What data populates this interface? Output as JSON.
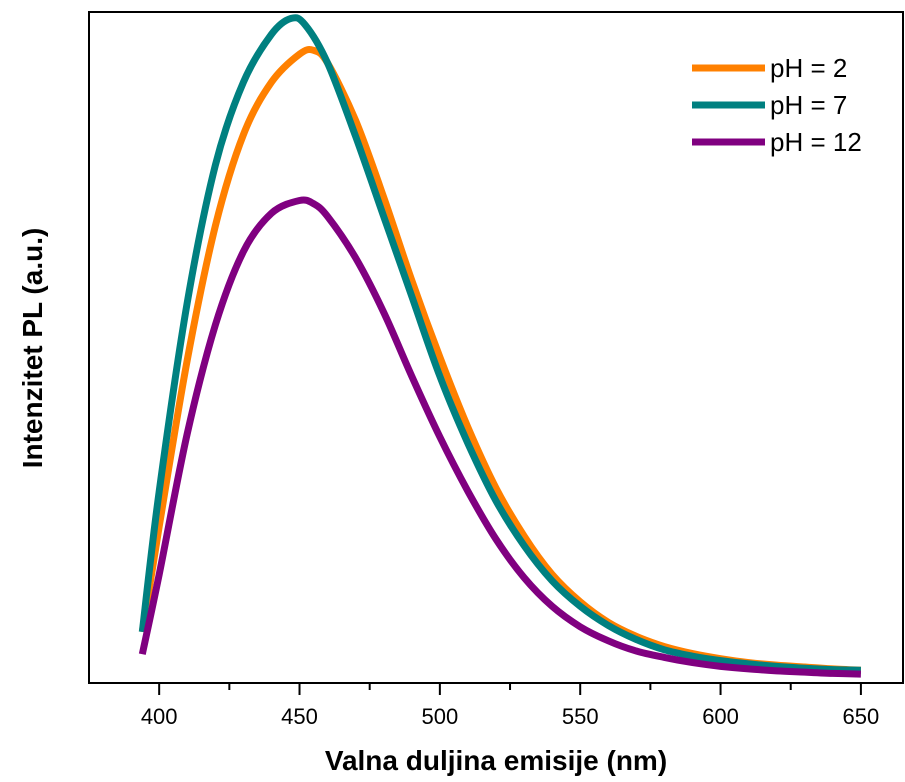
{
  "chart_data": {
    "type": "line",
    "title": "",
    "xlabel": "Valna duljina emisije (nm)",
    "ylabel": "Intenzitet PL (a.u.)",
    "xlim": [
      375,
      665
    ],
    "ylim": [
      0,
      1.05
    ],
    "x_ticks": [
      400,
      450,
      500,
      550,
      600,
      650
    ],
    "x_tick_labels": [
      "400",
      "450",
      "500",
      "550",
      "600",
      "650"
    ],
    "x_minor_step": 25,
    "y_tick_labels_shown": false,
    "grid": false,
    "legend_position": "top-right",
    "series": [
      {
        "name": "pH = 2",
        "color": "#ff8000",
        "x": [
          394,
          400,
          410,
          420,
          430,
          440,
          450,
          455,
          460,
          470,
          480,
          490,
          500,
          510,
          520,
          530,
          540,
          550,
          560,
          570,
          580,
          590,
          600,
          610,
          620,
          630,
          640,
          650
        ],
        "y": [
          0.08,
          0.245,
          0.505,
          0.715,
          0.858,
          0.94,
          0.984,
          0.99,
          0.97,
          0.88,
          0.76,
          0.63,
          0.51,
          0.4,
          0.305,
          0.23,
          0.17,
          0.127,
          0.095,
          0.073,
          0.057,
          0.046,
          0.038,
          0.032,
          0.028,
          0.025,
          0.022,
          0.02
        ]
      },
      {
        "name": "pH = 7",
        "color": "#008080",
        "x": [
          394,
          400,
          410,
          420,
          430,
          440,
          447,
          452,
          460,
          470,
          480,
          490,
          500,
          510,
          520,
          530,
          540,
          550,
          560,
          570,
          580,
          590,
          600,
          610,
          620,
          630,
          640,
          650
        ],
        "y": [
          0.08,
          0.3,
          0.595,
          0.81,
          0.94,
          1.015,
          1.04,
          1.03,
          0.97,
          0.855,
          0.73,
          0.605,
          0.48,
          0.375,
          0.285,
          0.215,
          0.16,
          0.12,
          0.09,
          0.068,
          0.052,
          0.042,
          0.035,
          0.03,
          0.026,
          0.023,
          0.021,
          0.02
        ]
      },
      {
        "name": "pH = 12",
        "color": "#800080",
        "x": [
          394,
          400,
          410,
          420,
          430,
          440,
          450,
          455,
          460,
          470,
          480,
          490,
          500,
          510,
          520,
          530,
          540,
          550,
          560,
          570,
          580,
          590,
          600,
          610,
          620,
          630,
          640,
          650
        ],
        "y": [
          0.045,
          0.17,
          0.39,
          0.56,
          0.675,
          0.735,
          0.755,
          0.75,
          0.73,
          0.665,
          0.58,
          0.48,
          0.385,
          0.3,
          0.225,
          0.165,
          0.12,
          0.088,
          0.066,
          0.05,
          0.04,
          0.032,
          0.026,
          0.022,
          0.019,
          0.017,
          0.015,
          0.014
        ]
      }
    ]
  }
}
